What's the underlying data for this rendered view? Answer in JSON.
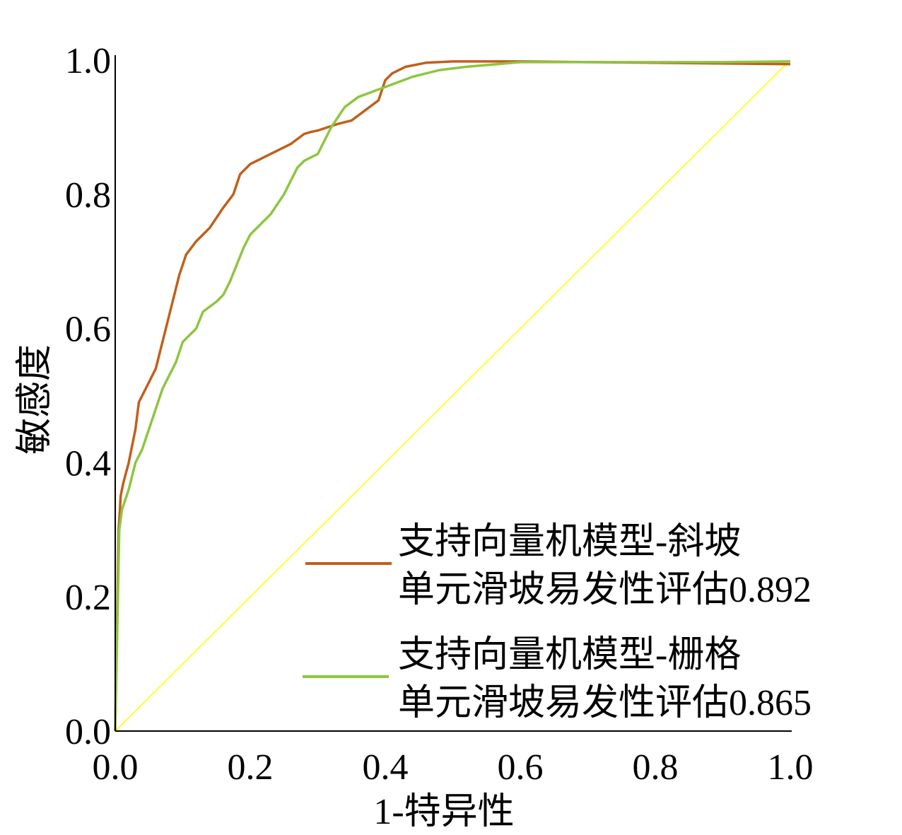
{
  "chart_data": {
    "type": "line",
    "title": "",
    "xlabel": "1-特异性",
    "ylabel": "敏感度",
    "xlim": [
      0,
      1
    ],
    "ylim": [
      0,
      1
    ],
    "xticks": [
      "0.0",
      "0.2",
      "0.4",
      "0.6",
      "0.8",
      "1.0"
    ],
    "yticks": [
      "0.0",
      "0.2",
      "0.4",
      "0.6",
      "0.8",
      "1.0"
    ],
    "grid": false,
    "legend_position": "bottom-right",
    "series": [
      {
        "name_line1": "支持向量机模型-斜坡",
        "name_line2": "单元滑坡易发性评估0.892",
        "color": "#c0601a",
        "x": [
          0.0,
          0.005,
          0.007,
          0.008,
          0.012,
          0.02,
          0.03,
          0.035,
          0.045,
          0.06,
          0.065,
          0.08,
          0.095,
          0.105,
          0.12,
          0.14,
          0.16,
          0.175,
          0.185,
          0.2,
          0.23,
          0.26,
          0.28,
          0.29,
          0.3,
          0.33,
          0.35,
          0.37,
          0.39,
          0.4,
          0.41,
          0.43,
          0.46,
          0.5,
          0.6,
          0.7,
          0.8,
          0.9,
          1.0
        ],
        "y": [
          0.0,
          0.3,
          0.33,
          0.35,
          0.37,
          0.4,
          0.45,
          0.49,
          0.51,
          0.54,
          0.56,
          0.62,
          0.68,
          0.71,
          0.73,
          0.75,
          0.78,
          0.8,
          0.83,
          0.845,
          0.86,
          0.875,
          0.89,
          0.893,
          0.895,
          0.905,
          0.91,
          0.925,
          0.94,
          0.97,
          0.98,
          0.99,
          0.996,
          0.998,
          0.998,
          0.997,
          0.996,
          0.995,
          0.994
        ]
      },
      {
        "name_line1": "支持向量机模型-栅格",
        "name_line2": "单元滑坡易发性评估0.865",
        "color": "#8dc63f",
        "x": [
          0.0,
          0.004,
          0.006,
          0.01,
          0.02,
          0.03,
          0.04,
          0.05,
          0.07,
          0.09,
          0.1,
          0.12,
          0.13,
          0.15,
          0.16,
          0.17,
          0.19,
          0.2,
          0.23,
          0.25,
          0.27,
          0.28,
          0.3,
          0.31,
          0.32,
          0.34,
          0.36,
          0.4,
          0.44,
          0.48,
          0.52,
          0.6,
          0.7,
          0.8,
          0.9,
          1.0
        ],
        "y": [
          0.0,
          0.2,
          0.3,
          0.33,
          0.36,
          0.4,
          0.42,
          0.45,
          0.51,
          0.55,
          0.58,
          0.6,
          0.625,
          0.64,
          0.65,
          0.67,
          0.72,
          0.74,
          0.77,
          0.8,
          0.84,
          0.85,
          0.86,
          0.88,
          0.9,
          0.93,
          0.945,
          0.96,
          0.975,
          0.985,
          0.99,
          0.997,
          0.997,
          0.997,
          0.997,
          0.998
        ]
      }
    ],
    "reference_line": {
      "color": "#ffff33",
      "x": [
        0,
        1
      ],
      "y": [
        0,
        1
      ]
    }
  }
}
